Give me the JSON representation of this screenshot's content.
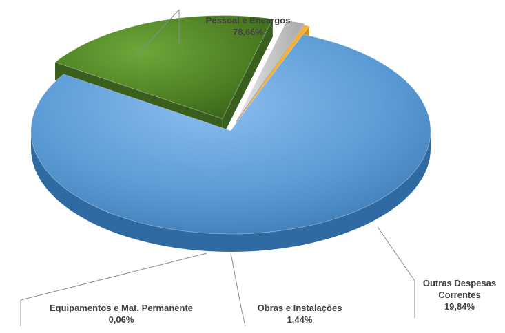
{
  "chart_data": {
    "type": "pie",
    "style": "3d-exploded",
    "title": "",
    "slices": [
      {
        "label": "Pessoal e Encargos",
        "value_label": "78,66%",
        "value": 78.66,
        "color": "#5b9bd5"
      },
      {
        "label": "Outras Despesas Correntes",
        "label_lines": [
          "Outras Despesas",
          "Correntes"
        ],
        "value_label": "19,84%",
        "value": 19.84,
        "color": "#4e7f23"
      },
      {
        "label": "Obras e Instalações",
        "value_label": "1,44%",
        "value": 1.44,
        "color": "#bfbfbf"
      },
      {
        "label": "Equipamentos e Mat. Permanente",
        "value_label": "0,06%",
        "value": 0.06,
        "color": "#f2b134"
      }
    ]
  }
}
